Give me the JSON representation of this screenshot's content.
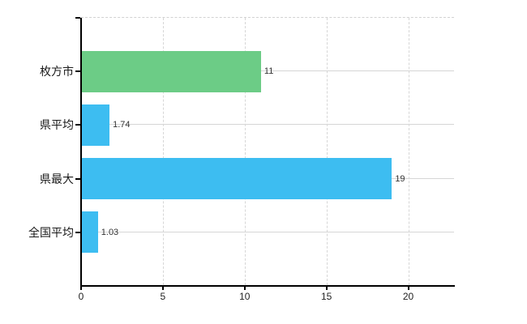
{
  "chart_data": {
    "type": "bar",
    "orientation": "horizontal",
    "title": "",
    "xlabel": "",
    "ylabel": "",
    "categories": [
      "枚方市",
      "県平均",
      "県最大",
      "全国平均"
    ],
    "values": [
      11,
      1.74,
      19,
      1.03
    ],
    "value_labels": [
      "11",
      "1.74",
      "19",
      "1.03"
    ],
    "bar_colors": [
      "#6ccc86",
      "#3dbdf1",
      "#3dbdf1",
      "#3dbdf1"
    ],
    "x_ticks": [
      0,
      5,
      10,
      15,
      20
    ],
    "x_tick_labels": [
      "0",
      "5",
      "10",
      "15",
      "20"
    ],
    "xlim": [
      0,
      22.8
    ],
    "grid": true,
    "grid_style": "vertical-dashed, horizontal-solid-at-category-centers",
    "legend": false,
    "axis_color": "#000000",
    "grid_color": "#d6d6d6",
    "text_color": "#222222",
    "background_color": "#ffffff"
  }
}
